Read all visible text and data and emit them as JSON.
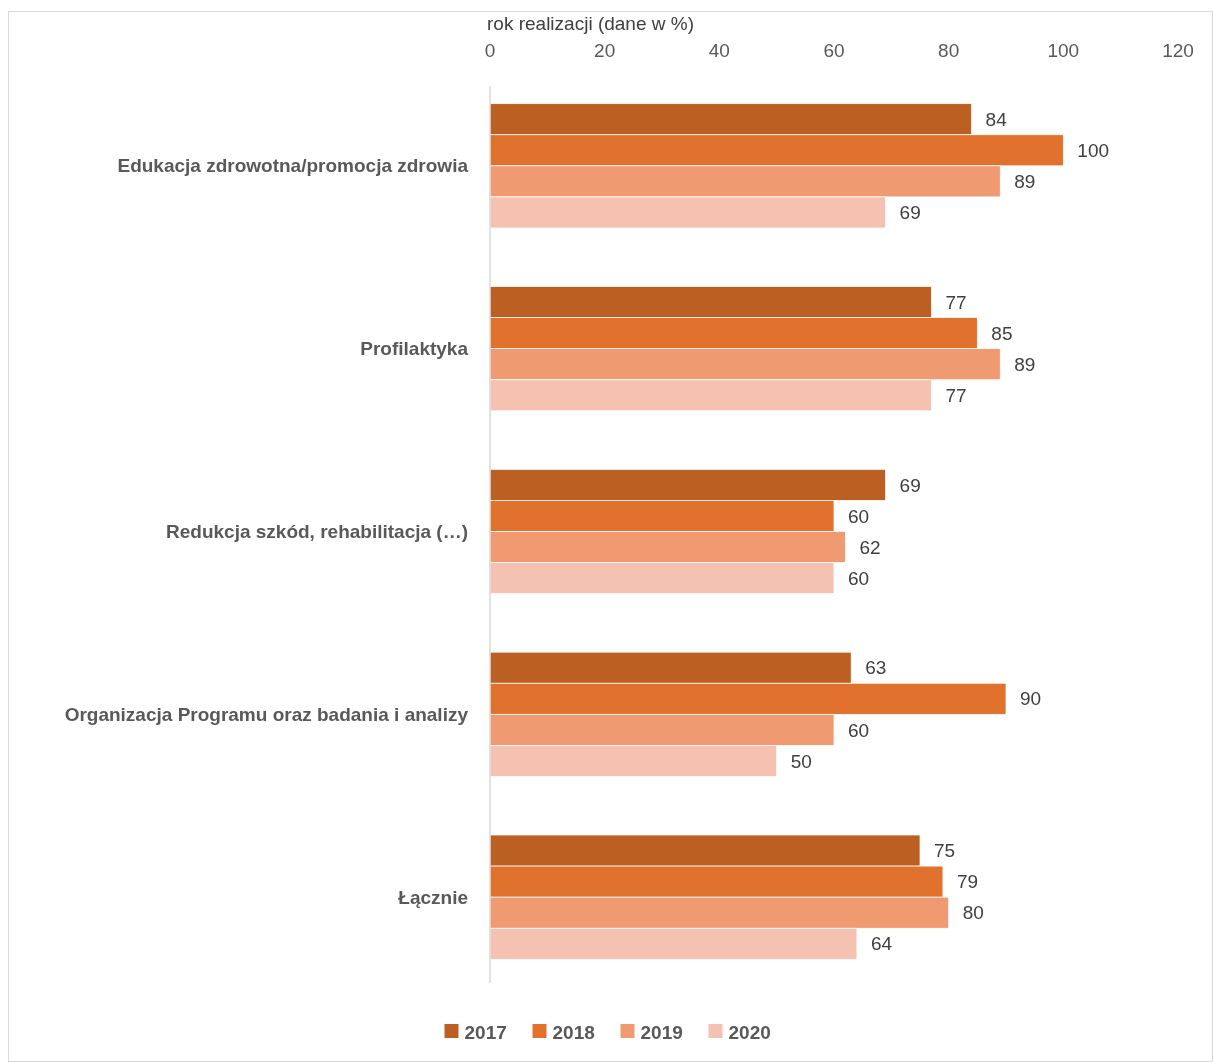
{
  "chart_data": {
    "type": "bar",
    "orientation": "horizontal",
    "title": "rok realizacji (dane w %)",
    "categories": [
      "Edukacja zdrowotna/promocja zdrowia",
      "Profilaktyka",
      "Redukcja szkód, rehabilitacja (…)",
      "Organizacja Programu oraz badania i analizy",
      "Łącznie"
    ],
    "series": [
      {
        "name": "2017",
        "color": "#bb5f22",
        "values": [
          84,
          77,
          69,
          63,
          75
        ]
      },
      {
        "name": "2018",
        "color": "#e0722d",
        "values": [
          100,
          85,
          60,
          90,
          79
        ]
      },
      {
        "name": "2019",
        "color": "#f09a72",
        "values": [
          89,
          89,
          62,
          60,
          80
        ]
      },
      {
        "name": "2020",
        "color": "#f5c2b2",
        "values": [
          69,
          77,
          60,
          50,
          64
        ]
      }
    ],
    "xlim": [
      0,
      120
    ],
    "xticks": [
      0,
      20,
      40,
      60,
      80,
      100,
      120
    ],
    "data_labels": true,
    "legend": "bottom",
    "grid": false
  }
}
